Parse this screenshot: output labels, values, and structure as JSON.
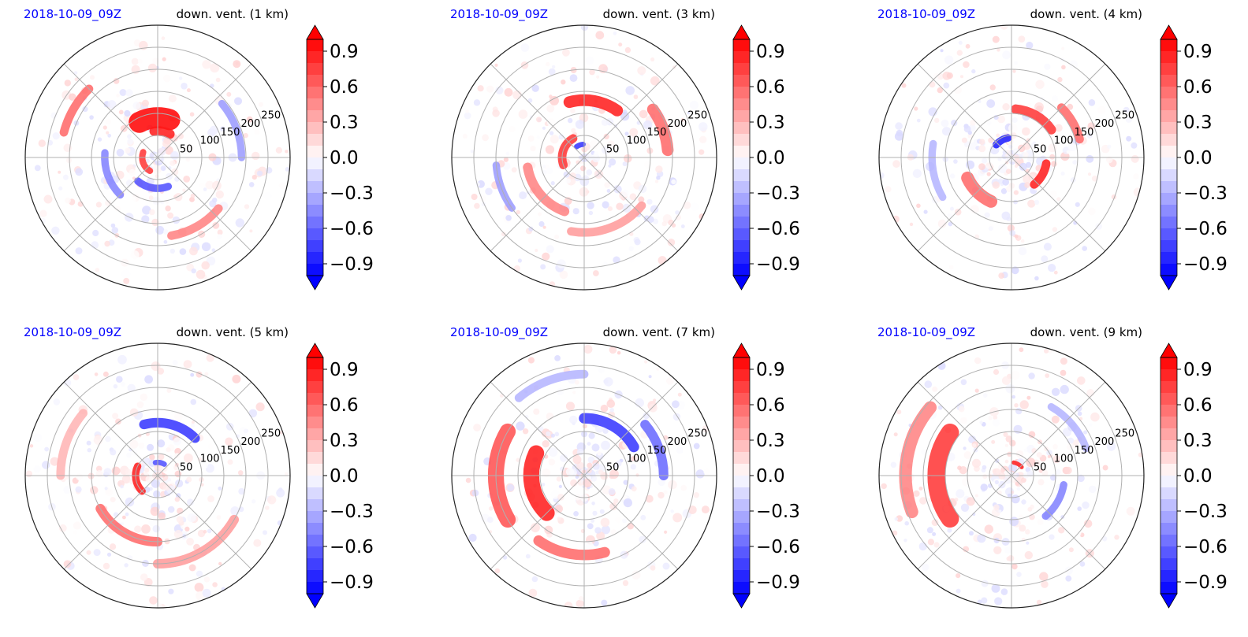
{
  "chart_data": [
    {
      "type": "heatmap",
      "projection": "polar",
      "date": "2018-10-09_09Z",
      "title": "down. vent. (1 km)",
      "radial_ticks": [
        "50",
        "100",
        "150",
        "200",
        "250"
      ],
      "radial_range": [
        0,
        300
      ],
      "colorbar_ticks": [
        "0.9",
        "0.6",
        "0.3",
        "0.0",
        "−0.3",
        "−0.6",
        "−0.9"
      ],
      "colorbar_range": [
        -1.0,
        1.0
      ],
      "grid": true,
      "features": [
        {
          "r": 90,
          "theta": 95,
          "value": 1.0,
          "spread": 45,
          "width": 40
        },
        {
          "r": 60,
          "theta": 80,
          "value": 0.9,
          "spread": 35,
          "width": 18
        },
        {
          "r": 35,
          "theta": 200,
          "value": 0.8,
          "spread": 80,
          "width": 12
        },
        {
          "r": 70,
          "theta": 260,
          "value": -0.7,
          "spread": 60,
          "width": 14
        },
        {
          "r": 120,
          "theta": 200,
          "value": -0.5,
          "spread": 50,
          "width": 14
        },
        {
          "r": 180,
          "theta": 300,
          "value": 0.5,
          "spread": 40,
          "width": 16
        },
        {
          "r": 220,
          "theta": 150,
          "value": 0.6,
          "spread": 30,
          "width": 16
        },
        {
          "r": 190,
          "theta": 20,
          "value": -0.4,
          "spread": 40,
          "width": 14
        }
      ]
    },
    {
      "type": "heatmap",
      "projection": "polar",
      "date": "2018-10-09_09Z",
      "title": "down. vent. (3 km)",
      "radial_ticks": [
        "50",
        "100",
        "150",
        "200",
        "250"
      ],
      "radial_range": [
        0,
        300
      ],
      "colorbar_ticks": [
        "0.9",
        "0.6",
        "0.3",
        "0.0",
        "−0.3",
        "−0.6",
        "−0.9"
      ],
      "colorbar_range": [
        -1.0,
        1.0
      ],
      "grid": true,
      "features": [
        {
          "r": 130,
          "theta": 80,
          "value": 0.9,
          "spread": 50,
          "width": 22
        },
        {
          "r": 50,
          "theta": 160,
          "value": 0.8,
          "spread": 80,
          "width": 16
        },
        {
          "r": 30,
          "theta": 110,
          "value": -0.8,
          "spread": 30,
          "width": 10
        },
        {
          "r": 190,
          "theta": 20,
          "value": 0.6,
          "spread": 30,
          "width": 22
        },
        {
          "r": 130,
          "theta": 220,
          "value": 0.5,
          "spread": 60,
          "width": 18
        },
        {
          "r": 200,
          "theta": 200,
          "value": -0.4,
          "spread": 30,
          "width": 14
        },
        {
          "r": 170,
          "theta": 290,
          "value": 0.4,
          "spread": 60,
          "width": 16
        }
      ]
    },
    {
      "type": "heatmap",
      "projection": "polar",
      "date": "2018-10-09_09Z",
      "title": "down. vent. (4 km)",
      "radial_ticks": [
        "50",
        "100",
        "150",
        "200",
        "250"
      ],
      "radial_range": [
        0,
        300
      ],
      "colorbar_ticks": [
        "0.9",
        "0.6",
        "0.3",
        "0.0",
        "−0.3",
        "−0.6",
        "−0.9"
      ],
      "colorbar_range": [
        -1.0,
        1.0
      ],
      "grid": true,
      "features": [
        {
          "r": 110,
          "theta": 60,
          "value": 0.8,
          "spread": 50,
          "width": 18
        },
        {
          "r": 45,
          "theta": 120,
          "value": -0.9,
          "spread": 40,
          "width": 14
        },
        {
          "r": 80,
          "theta": 330,
          "value": 0.9,
          "spread": 40,
          "width": 16
        },
        {
          "r": 110,
          "theta": 225,
          "value": 0.6,
          "spread": 40,
          "width": 24
        },
        {
          "r": 180,
          "theta": 190,
          "value": -0.3,
          "spread": 40,
          "width": 14
        },
        {
          "r": 160,
          "theta": 30,
          "value": 0.6,
          "spread": 30,
          "width": 16
        }
      ]
    },
    {
      "type": "heatmap",
      "projection": "polar",
      "date": "2018-10-09_09Z",
      "title": "down. vent. (5 km)",
      "radial_ticks": [
        "50",
        "100",
        "150",
        "200",
        "250"
      ],
      "radial_range": [
        0,
        300
      ],
      "colorbar_ticks": [
        "0.9",
        "0.6",
        "0.3",
        "0.0",
        "−0.3",
        "−0.6",
        "−0.9"
      ],
      "colorbar_range": [
        -1.0,
        1.0
      ],
      "grid": true,
      "features": [
        {
          "r": 120,
          "theta": 75,
          "value": -0.8,
          "spread": 60,
          "width": 18
        },
        {
          "r": 50,
          "theta": 190,
          "value": 0.9,
          "spread": 70,
          "width": 14
        },
        {
          "r": 30,
          "theta": 80,
          "value": -0.7,
          "spread": 40,
          "width": 10
        },
        {
          "r": 150,
          "theta": 240,
          "value": 0.6,
          "spread": 60,
          "width": 18
        },
        {
          "r": 200,
          "theta": 300,
          "value": 0.4,
          "spread": 60,
          "width": 18
        },
        {
          "r": 220,
          "theta": 160,
          "value": 0.3,
          "spread": 40,
          "width": 16
        }
      ]
    },
    {
      "type": "heatmap",
      "projection": "polar",
      "date": "2018-10-09_09Z",
      "title": "down. vent. (7 km)",
      "radial_ticks": [
        "50",
        "100",
        "150",
        "200",
        "250"
      ],
      "radial_range": [
        0,
        300
      ],
      "colorbar_ticks": [
        "0.9",
        "0.6",
        "0.3",
        "0.0",
        "−0.3",
        "−0.6",
        "−0.9"
      ],
      "colorbar_range": [
        -1.0,
        1.0
      ],
      "grid": true,
      "features": [
        {
          "r": 120,
          "theta": 190,
          "value": 0.9,
          "spread": 70,
          "width": 30
        },
        {
          "r": 200,
          "theta": 180,
          "value": 0.7,
          "spread": 60,
          "width": 30
        },
        {
          "r": 130,
          "theta": 60,
          "value": -0.8,
          "spread": 60,
          "width": 20
        },
        {
          "r": 180,
          "theta": 20,
          "value": -0.6,
          "spread": 40,
          "width": 18
        },
        {
          "r": 180,
          "theta": 260,
          "value": 0.6,
          "spread": 50,
          "width": 20
        },
        {
          "r": 230,
          "theta": 110,
          "value": -0.3,
          "spread": 40,
          "width": 16
        }
      ]
    },
    {
      "type": "heatmap",
      "projection": "polar",
      "date": "2018-10-09_09Z",
      "title": "down. vent. (9 km)",
      "radial_ticks": [
        "50",
        "100",
        "150",
        "200",
        "250"
      ],
      "radial_range": [
        0,
        300
      ],
      "colorbar_ticks": [
        "0.9",
        "0.6",
        "0.3",
        "0.0",
        "−0.3",
        "−0.6",
        "−0.9"
      ],
      "colorbar_range": [
        -1.0,
        1.0
      ],
      "grid": true,
      "features": [
        {
          "r": 170,
          "theta": 180,
          "value": 0.8,
          "spread": 70,
          "width": 34
        },
        {
          "r": 240,
          "theta": 170,
          "value": 0.5,
          "spread": 60,
          "width": 24
        },
        {
          "r": 30,
          "theta": 60,
          "value": 0.9,
          "spread": 40,
          "width": 8
        },
        {
          "r": 120,
          "theta": 330,
          "value": -0.5,
          "spread": 40,
          "width": 14
        },
        {
          "r": 180,
          "theta": 40,
          "value": -0.3,
          "spread": 40,
          "width": 14
        }
      ]
    }
  ],
  "colors": {
    "date_label": "#0000ff",
    "positive": "#ff0000",
    "negative": "#0000ff",
    "zero": "#ffffff",
    "grid": "#b0b0b0"
  }
}
